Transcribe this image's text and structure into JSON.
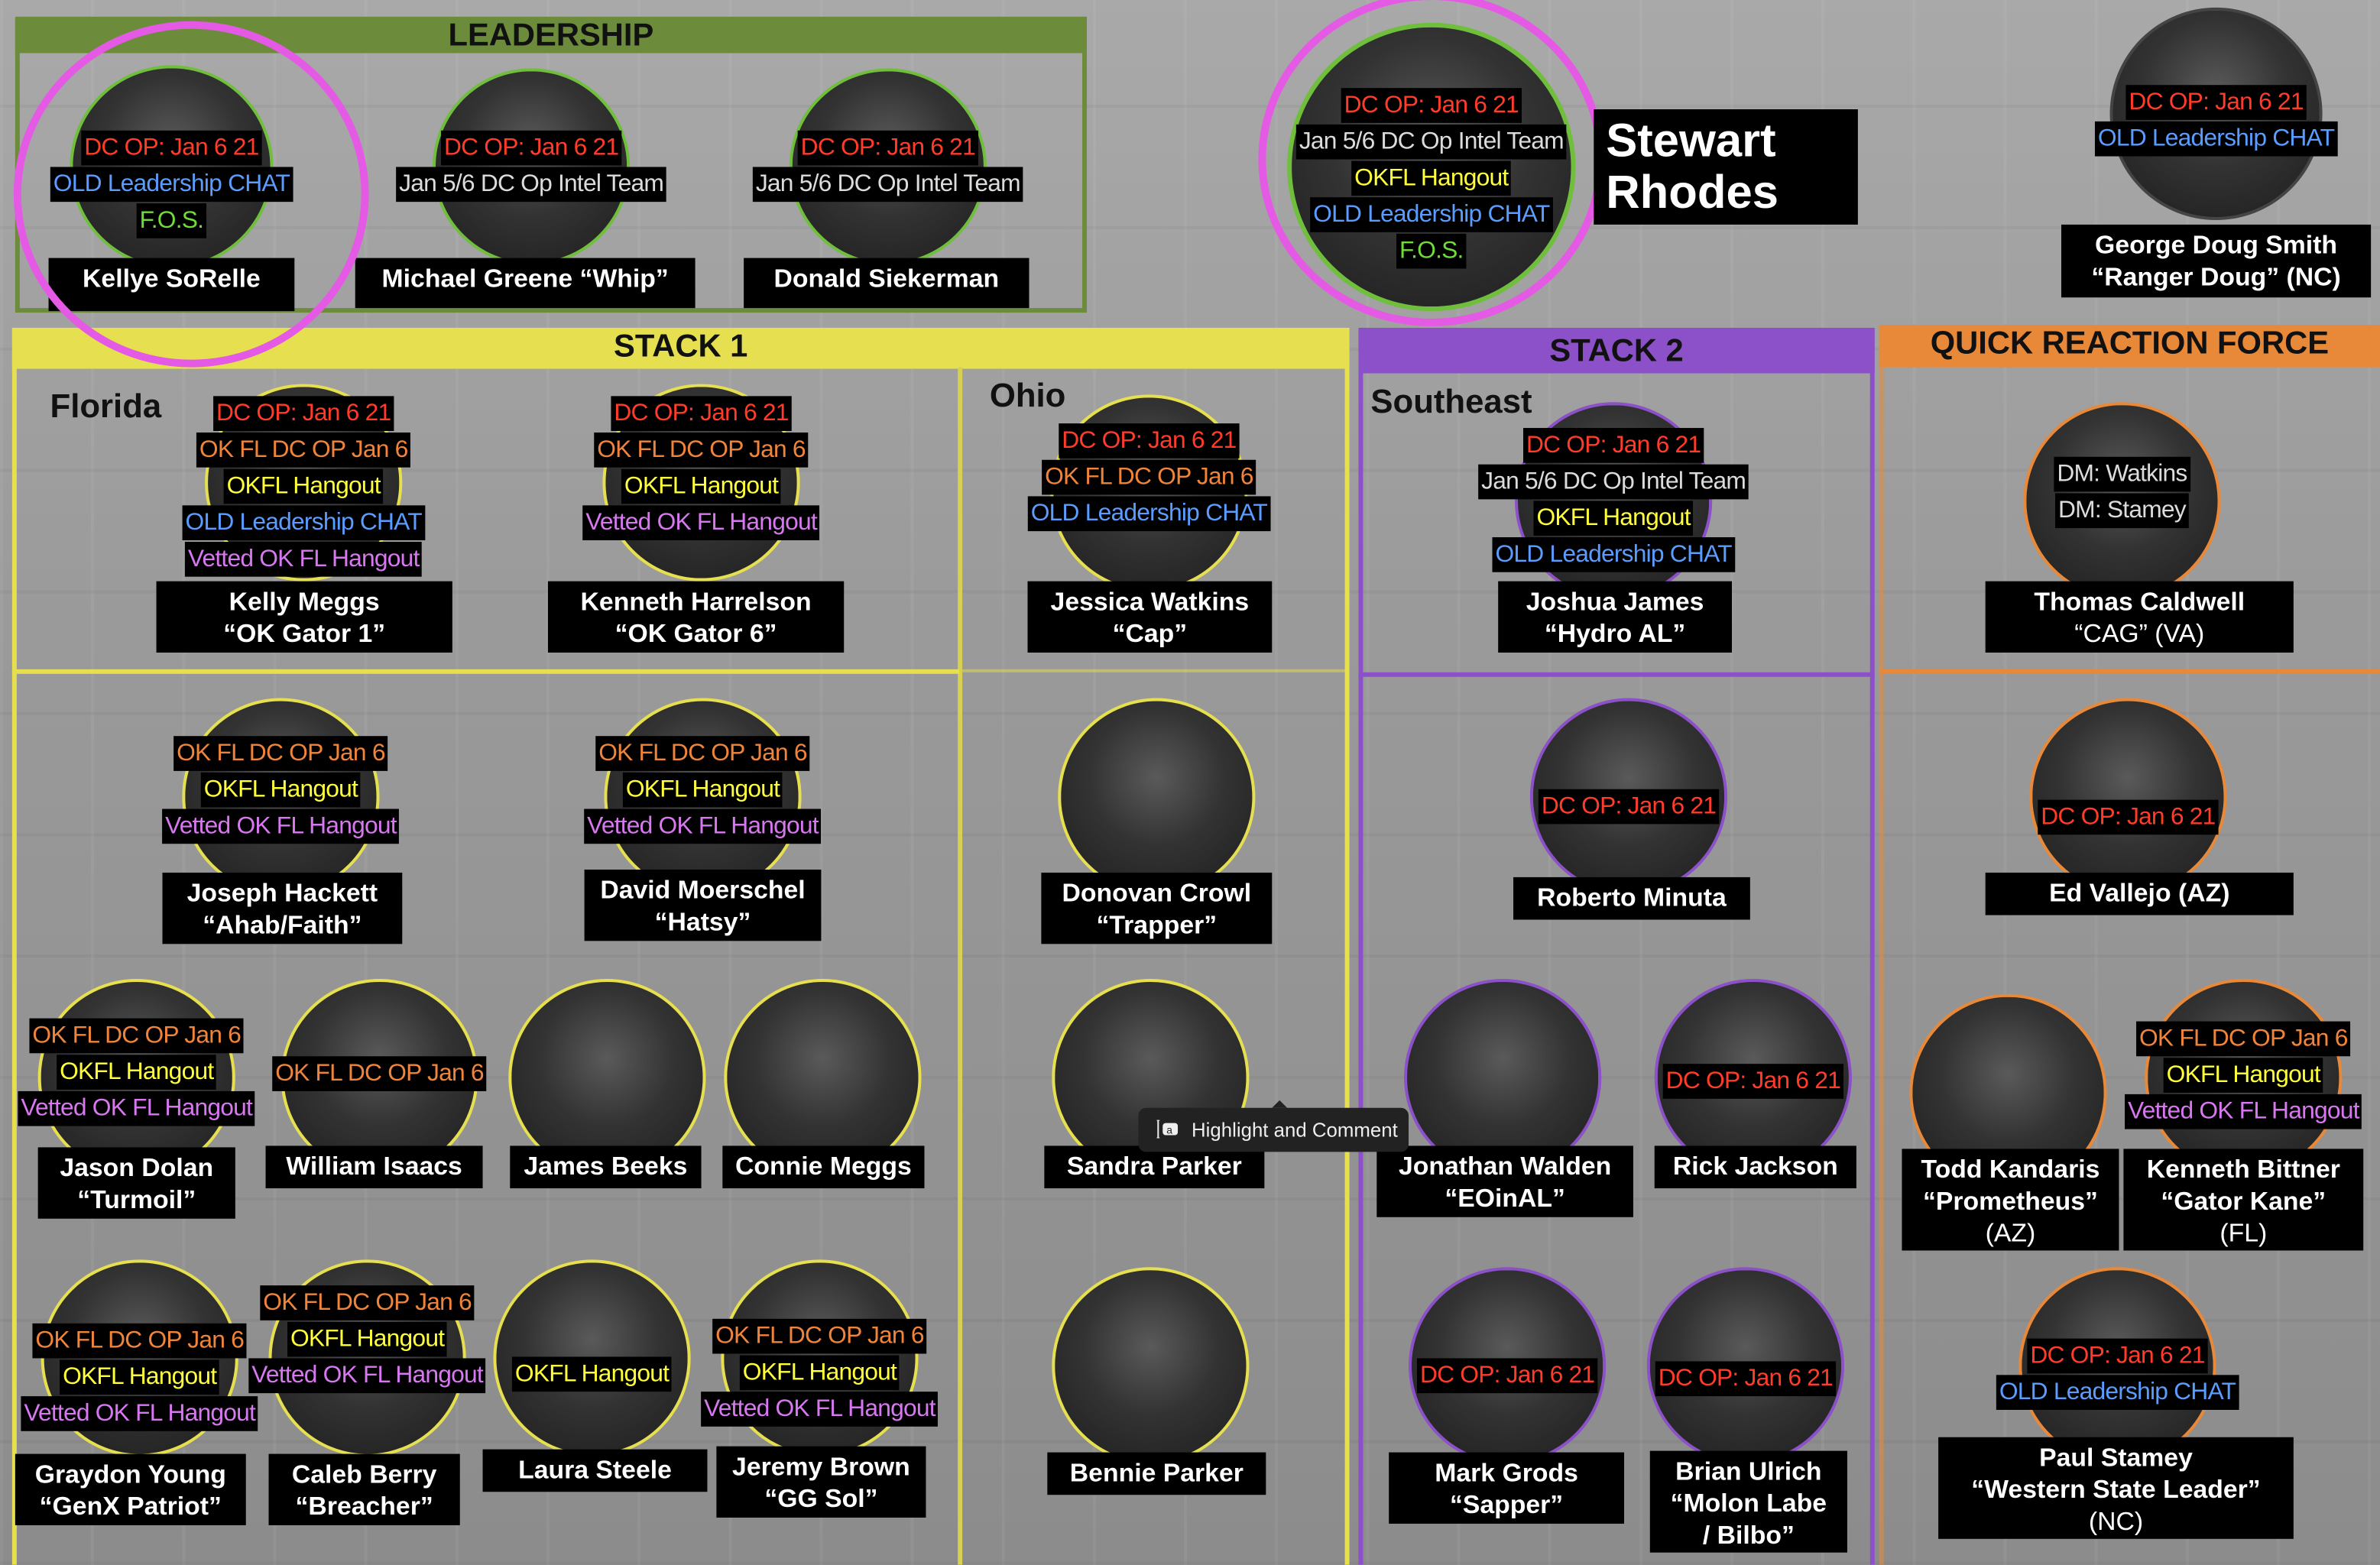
{
  "colors": {
    "red": "#ff3b2a",
    "orange": "#f0843a",
    "yellow": "#ffff3c",
    "blue": "#5b9dff",
    "violet": "#d878f0",
    "green": "#6fdc3c",
    "light": "#dcdcdc",
    "leadership": "#6c8c3c",
    "stack1": "#e6e050",
    "stack2": "#8c50c8",
    "qrf": "#e8893a",
    "highlight_ring": "#e45ae4"
  },
  "sections": {
    "leadership": "LEADERSHIP",
    "stack1": "STACK 1",
    "stack2": "STACK 2",
    "qrf": "QUICK REACTION FORCE"
  },
  "regions": {
    "florida": "Florida",
    "ohio": "Ohio",
    "southeast": "Southeast"
  },
  "rhodes": {
    "name_line1": "Stewart",
    "name_line2": "Rhodes",
    "tags": [
      {
        "text": "DC OP: Jan 6 21",
        "kind": "red"
      },
      {
        "text": "Jan 5/6 DC Op Intel Team",
        "kind": "light"
      },
      {
        "text": "OKFL Hangout",
        "kind": "yellow"
      },
      {
        "text": "OLD Leadership CHAT",
        "kind": "blue"
      },
      {
        "text": "F.O.S.",
        "kind": "green"
      }
    ]
  },
  "people": [
    {
      "lines": [
        "Kellye SoRelle"
      ],
      "tags": [
        {
          "text": "DC OP: Jan 6 21",
          "kind": "red"
        },
        {
          "text": "OLD Leadership CHAT",
          "kind": "blue"
        },
        {
          "text": "F.O.S.",
          "kind": "green"
        }
      ]
    },
    {
      "lines": [
        "Michael Greene  “Whip”"
      ],
      "tags": [
        {
          "text": "DC OP: Jan 6 21",
          "kind": "red"
        },
        {
          "text": "Jan 5/6 DC Op Intel Team",
          "kind": "light"
        }
      ]
    },
    {
      "lines": [
        "Donald Siekerman"
      ],
      "tags": [
        {
          "text": "DC OP: Jan 6 21",
          "kind": "red"
        },
        {
          "text": "Jan 5/6 DC Op Intel Team",
          "kind": "light"
        }
      ]
    },
    {
      "lines": [
        "George Doug Smith",
        "“Ranger Doug” (NC)"
      ],
      "tags": [
        {
          "text": "DC OP: Jan 6 21",
          "kind": "red"
        },
        {
          "text": "OLD Leadership CHAT",
          "kind": "blue"
        }
      ]
    },
    {
      "lines": [
        "Kelly Meggs",
        "“OK Gator 1”"
      ],
      "tags": [
        {
          "text": "DC OP: Jan 6 21",
          "kind": "red"
        },
        {
          "text": "OK FL DC OP Jan 6",
          "kind": "orange"
        },
        {
          "text": "OKFL Hangout",
          "kind": "yellow"
        },
        {
          "text": "OLD Leadership CHAT",
          "kind": "blue"
        },
        {
          "text": "Vetted OK FL Hangout",
          "kind": "violet"
        }
      ]
    },
    {
      "lines": [
        "Kenneth Harrelson",
        "“OK Gator 6”"
      ],
      "tags": [
        {
          "text": "DC OP: Jan 6 21",
          "kind": "red"
        },
        {
          "text": "OK FL DC OP Jan 6",
          "kind": "orange"
        },
        {
          "text": "OKFL Hangout",
          "kind": "yellow"
        },
        {
          "text": "Vetted OK FL Hangout",
          "kind": "violet"
        }
      ]
    },
    {
      "lines": [
        "Jessica Watkins",
        "“Cap”"
      ],
      "tags": [
        {
          "text": "DC OP: Jan 6 21",
          "kind": "red"
        },
        {
          "text": "OK FL DC OP Jan 6",
          "kind": "orange"
        },
        {
          "text": "OLD Leadership  CHAT",
          "kind": "blue"
        }
      ]
    },
    {
      "lines": [
        "Joseph Hackett",
        "“Ahab/Faith”"
      ],
      "tags": [
        {
          "text": "OK FL DC OP Jan 6",
          "kind": "orange"
        },
        {
          "text": "OKFL Hangout",
          "kind": "yellow"
        },
        {
          "text": "Vetted OK FL Hangout",
          "kind": "violet"
        }
      ]
    },
    {
      "lines": [
        "David Moerschel",
        "“Hatsy”"
      ],
      "tags": [
        {
          "text": "OK FL DC OP Jan 6",
          "kind": "orange"
        },
        {
          "text": "OKFL Hangout",
          "kind": "yellow"
        },
        {
          "text": "Vetted OK FL Hangout",
          "kind": "violet"
        }
      ]
    },
    {
      "lines": [
        "Donovan Crowl",
        "“Trapper”"
      ],
      "tags": []
    },
    {
      "lines": [
        "Jason Dolan",
        "“Turmoil”"
      ],
      "tags": [
        {
          "text": "OK FL DC OP Jan 6",
          "kind": "orange"
        },
        {
          "text": "OKFL Hangout",
          "kind": "yellow"
        },
        {
          "text": "Vetted OK FL Hangout",
          "kind": "violet"
        }
      ]
    },
    {
      "lines": [
        "William Isaacs"
      ],
      "tags": [
        {
          "text": "OK FL DC OP Jan 6",
          "kind": "orange"
        }
      ]
    },
    {
      "lines": [
        "James Beeks"
      ],
      "tags": []
    },
    {
      "lines": [
        "Connie Meggs"
      ],
      "tags": []
    },
    {
      "lines": [
        "Sandra Parker"
      ],
      "tags": []
    },
    {
      "lines": [
        "Graydon Young",
        "“GenX Patriot”"
      ],
      "tags": [
        {
          "text": "OK FL DC OP Jan 6",
          "kind": "orange"
        },
        {
          "text": "OKFL Hangout",
          "kind": "yellow"
        },
        {
          "text": "Vetted OK FL Hangout",
          "kind": "violet"
        }
      ]
    },
    {
      "lines": [
        "Caleb Berry",
        "“Breacher”"
      ],
      "tags": [
        {
          "text": "OK FL DC OP Jan 6",
          "kind": "orange"
        },
        {
          "text": "OKFL Hangout",
          "kind": "yellow"
        },
        {
          "text": "Vetted OK FL Hangout",
          "kind": "violet"
        }
      ]
    },
    {
      "lines": [
        "Laura Steele"
      ],
      "tags": [
        {
          "text": "OKFL Hangout",
          "kind": "yellow"
        }
      ]
    },
    {
      "lines": [
        "Jeremy Brown",
        "“GG Sol”"
      ],
      "tags": [
        {
          "text": "OK FL DC OP Jan 6",
          "kind": "orange"
        },
        {
          "text": "OKFL Hangout",
          "kind": "yellow"
        },
        {
          "text": "Vetted OK FL Hangout",
          "kind": "violet"
        }
      ]
    },
    {
      "lines": [
        "Bennie Parker"
      ],
      "tags": []
    },
    {
      "lines": [
        "Joshua James",
        "“Hydro AL”"
      ],
      "tags": [
        {
          "text": "DC OP: Jan 6 21",
          "kind": "red"
        },
        {
          "text": "Jan 5/6 DC Op Intel Team",
          "kind": "light"
        },
        {
          "text": "OKFL Hangout",
          "kind": "yellow"
        },
        {
          "text": "OLD Leadership  CHAT",
          "kind": "blue"
        }
      ]
    },
    {
      "lines": [
        "Roberto Minuta"
      ],
      "tags": [
        {
          "text": "DC OP: Jan 6 21",
          "kind": "red"
        }
      ]
    },
    {
      "lines": [
        "Jonathan Walden",
        "“EOinAL”"
      ],
      "tags": []
    },
    {
      "lines": [
        "Rick Jackson"
      ],
      "tags": [
        {
          "text": "DC OP: Jan 6 21",
          "kind": "red"
        }
      ]
    },
    {
      "lines": [
        "Mark Grods",
        "“Sapper”"
      ],
      "tags": [
        {
          "text": "DC OP: Jan 6 21",
          "kind": "red"
        }
      ]
    },
    {
      "lines": [
        "Brian Ulrich",
        "“Molon Labe",
        "/ Bilbo”"
      ],
      "tags": [
        {
          "text": "DC OP: Jan 6 21",
          "kind": "red"
        }
      ]
    },
    {
      "lines": [
        "Thomas Caldwell",
        "“CAG” (VA)"
      ],
      "tags": [
        {
          "text": "DM: Watkins",
          "kind": "light"
        },
        {
          "text": "DM: Stamey",
          "kind": "light"
        }
      ]
    },
    {
      "lines": [
        "Ed Vallejo (AZ)"
      ],
      "tags": [
        {
          "text": "DC OP: Jan 6 21",
          "kind": "red"
        }
      ]
    },
    {
      "lines": [
        "Todd Kandaris",
        "“Prometheus”",
        "(AZ)"
      ],
      "tags": []
    },
    {
      "lines": [
        "Kenneth Bittner",
        "“Gator Kane”",
        "(FL)"
      ],
      "tags": [
        {
          "text": "OK FL DC OP Jan 6",
          "kind": "orange"
        },
        {
          "text": "OKFL Hangout",
          "kind": "yellow"
        },
        {
          "text": "Vetted OK FL Hangout",
          "kind": "violet"
        }
      ]
    },
    {
      "lines": [
        "Paul Stamey",
        "“Western State Leader”",
        "(NC)"
      ],
      "tags": [
        {
          "text": "DC OP: Jan 6 21",
          "kind": "red"
        },
        {
          "text": "OLD Leadership CHAT",
          "kind": "blue"
        }
      ]
    }
  ],
  "tooltip": {
    "label": "Highlight and Comment",
    "icon": "text-cursor-highlight-icon"
  }
}
